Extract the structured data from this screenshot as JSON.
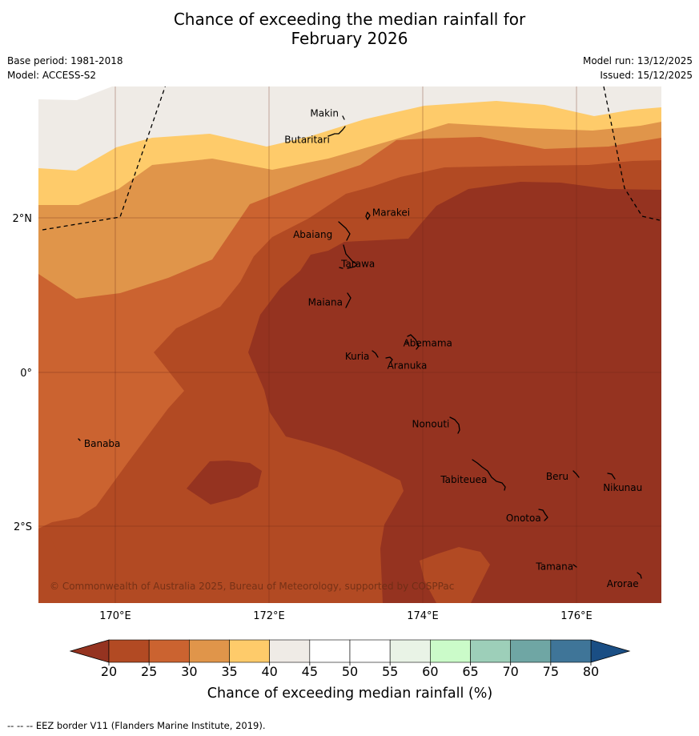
{
  "title_line1": "Chance of exceeding the median rainfall for",
  "title_line2": "February 2026",
  "base_period": "Base period: 1981-2018",
  "model": "Model: ACCESS-S2",
  "model_run": "Model run: 13/12/2025",
  "issued": "Issued: 15/12/2025",
  "map": {
    "lon_ticks": [
      "170°E",
      "172°E",
      "174°E",
      "176°E"
    ],
    "lat_ticks": [
      "2°N",
      "0°",
      "2°S"
    ],
    "places": [
      {
        "name": "Makin",
        "lon": 172.99,
        "lat": 3.38
      },
      {
        "name": "Butaritari",
        "lon": 172.8,
        "lat": 3.07
      },
      {
        "name": "Marakei",
        "lon": 173.28,
        "lat": 2.0
      },
      {
        "name": "Abaiang",
        "lon": 172.96,
        "lat": 1.85
      },
      {
        "name": "Tarawa",
        "lon": 172.97,
        "lat": 1.42
      },
      {
        "name": "Maiana",
        "lon": 173.0,
        "lat": 0.93
      },
      {
        "name": "Abemama",
        "lon": 173.85,
        "lat": 0.4
      },
      {
        "name": "Kuria",
        "lon": 173.4,
        "lat": 0.23
      },
      {
        "name": "Aranuka",
        "lon": 173.6,
        "lat": 0.17
      },
      {
        "name": "Nonouti",
        "lon": 174.4,
        "lat": -0.65
      },
      {
        "name": "Banaba",
        "lon": 169.53,
        "lat": -0.86
      },
      {
        "name": "Tabiteuea",
        "lon": 174.9,
        "lat": -1.35
      },
      {
        "name": "Beru",
        "lon": 176.0,
        "lat": -1.33
      },
      {
        "name": "Nikunau",
        "lon": 176.45,
        "lat": -1.35
      },
      {
        "name": "Onotoa",
        "lon": 175.57,
        "lat": -1.85
      },
      {
        "name": "Tamana",
        "lon": 175.98,
        "lat": -2.5
      },
      {
        "name": "Arorae",
        "lon": 176.83,
        "lat": -2.65
      }
    ],
    "copyright": "© Commonwealth of Australia 2025, Bureau of Meteorology, supported by COSPPac"
  },
  "colorbar": {
    "ticks": [
      "20",
      "25",
      "30",
      "35",
      "40",
      "45",
      "50",
      "55",
      "60",
      "65",
      "70",
      "75",
      "80"
    ],
    "colors": [
      "#b24a23",
      "#cb6330",
      "#e0954a",
      "#fecb6a",
      "#efebe6",
      "#ffffff",
      "#ffffff",
      "#e9f3e6",
      "#cbfbc9",
      "#9dcfb9",
      "#6fa6a4",
      "#3f7598"
    ],
    "under_color": "#953320",
    "over_color": "#1a4e84",
    "label": "Chance of exceeding median rainfall (%)"
  },
  "footnote": "--  --  -- EEZ border V11 (Flanders Marine Institute, 2019)."
}
